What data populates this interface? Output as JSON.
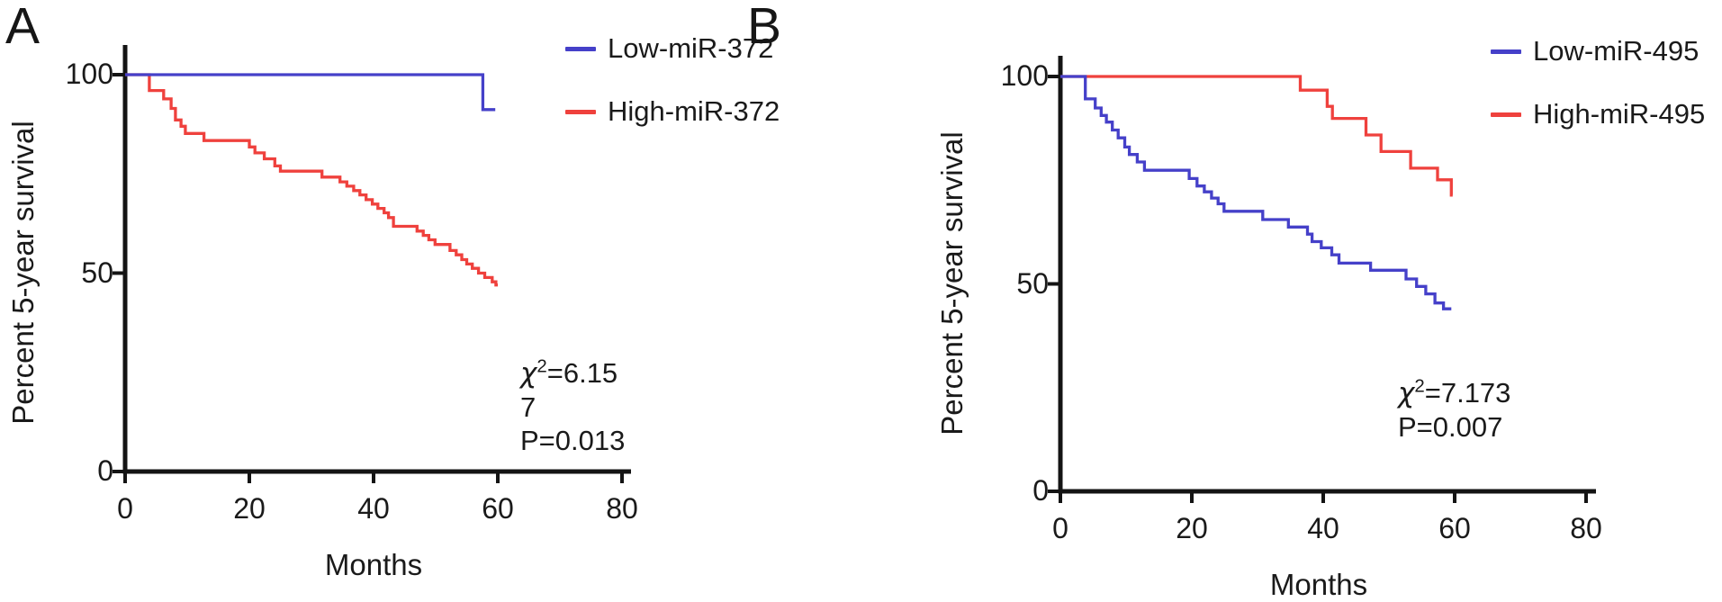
{
  "panels": [
    {
      "label": "A",
      "ylabel": "Percent 5-year survival",
      "xlabel": "Months",
      "stats": {
        "chi_symbol": "χ",
        "chi_exponent": "2",
        "chi_value": "=6.15",
        "overflow": "7",
        "p_value": "P=0.013"
      },
      "legend": [
        {
          "name": "Low-miR-372",
          "color": "#4540c9"
        },
        {
          "name": "High-miR-372",
          "color": "#ef413d"
        }
      ]
    },
    {
      "label": "B",
      "ylabel": "Percent 5-year survival",
      "xlabel": "Months",
      "stats": {
        "chi_symbol": "χ",
        "chi_exponent": "2",
        "chi_value": "=7.173",
        "overflow": "",
        "p_value": "P=0.007"
      },
      "legend": [
        {
          "name": "Low-miR-495",
          "color": "#4540c9"
        },
        {
          "name": "High-miR-495",
          "color": "#ef413d"
        }
      ]
    }
  ],
  "chart_data": [
    {
      "type": "line",
      "subtype": "kaplan-meier-step",
      "panel": "A",
      "title": "",
      "xlabel": "Months",
      "ylabel": "Percent 5-year survival",
      "xlim": [
        0,
        80
      ],
      "ylim": [
        0,
        100
      ],
      "xticks": [
        0,
        20,
        40,
        60,
        80
      ],
      "yticks": [
        0,
        50,
        100
      ],
      "grid": false,
      "legend_position": "top-right",
      "chi_squared": 6.157,
      "p_value": 0.013,
      "series": [
        {
          "name": "Low-miR-372",
          "color": "#4540c9",
          "start": [
            0,
            100
          ],
          "drops": [
            [
              57.6,
              91.2
            ]
          ],
          "end_month": 59.6
        },
        {
          "name": "High-miR-372",
          "color": "#ef413d",
          "start": [
            0,
            100
          ],
          "drops": [
            [
              3.9,
              96
            ],
            [
              6.2,
              93.9
            ],
            [
              7.4,
              91.5
            ],
            [
              8.1,
              88.6
            ],
            [
              9,
              87
            ],
            [
              9.7,
              85.2
            ],
            [
              12.7,
              83.4
            ],
            [
              20,
              81.8
            ],
            [
              20.9,
              80.3
            ],
            [
              22.4,
              78.8
            ],
            [
              24.1,
              77
            ],
            [
              25,
              75.7
            ],
            [
              31.7,
              74.2
            ],
            [
              34.6,
              73
            ],
            [
              35.7,
              71.9
            ],
            [
              36.8,
              70.8
            ],
            [
              37.8,
              69.7
            ],
            [
              38.8,
              68.5
            ],
            [
              39.8,
              67.4
            ],
            [
              40.7,
              66.3
            ],
            [
              41.7,
              65.2
            ],
            [
              42.4,
              64
            ],
            [
              43.2,
              61.8
            ],
            [
              47,
              60.6
            ],
            [
              48,
              59.5
            ],
            [
              48.9,
              58.4
            ],
            [
              49.9,
              57.2
            ],
            [
              52.3,
              55.7
            ],
            [
              53.3,
              54.6
            ],
            [
              54.2,
              53.4
            ],
            [
              55,
              52.3
            ],
            [
              55.9,
              51.2
            ],
            [
              56.9,
              50
            ],
            [
              57.9,
              48.9
            ],
            [
              59.1,
              47.8
            ],
            [
              59.7,
              47
            ]
          ],
          "end_month": 60
        }
      ]
    },
    {
      "type": "line",
      "subtype": "kaplan-meier-step",
      "panel": "B",
      "title": "",
      "xlabel": "Months",
      "ylabel": "Percent 5-year survival",
      "xlim": [
        0,
        80
      ],
      "ylim": [
        0,
        100
      ],
      "xticks": [
        0,
        20,
        40,
        60,
        80
      ],
      "yticks": [
        0,
        50,
        100
      ],
      "grid": false,
      "legend_position": "top-right",
      "chi_squared": 7.173,
      "p_value": 0.007,
      "series": [
        {
          "name": "Low-miR-495",
          "color": "#4540c9",
          "start": [
            0,
            100
          ],
          "drops": [
            [
              3.8,
              94.6
            ],
            [
              5.3,
              92.4
            ],
            [
              6.2,
              90.6
            ],
            [
              7,
              89
            ],
            [
              7.9,
              87.1
            ],
            [
              8.8,
              85.2
            ],
            [
              9.8,
              83
            ],
            [
              10.5,
              81.2
            ],
            [
              11.7,
              79.4
            ],
            [
              12.8,
              77.4
            ],
            [
              19.6,
              75.4
            ],
            [
              20.8,
              73.6
            ],
            [
              21.9,
              72.2
            ],
            [
              23,
              70.7
            ],
            [
              24,
              69.3
            ],
            [
              24.9,
              67.5
            ],
            [
              30.8,
              65.5
            ],
            [
              34.7,
              63.7
            ],
            [
              37.6,
              62
            ],
            [
              38.3,
              60.2
            ],
            [
              39.7,
              58.7
            ],
            [
              41.3,
              57
            ],
            [
              42.4,
              55
            ],
            [
              47.2,
              53.3
            ],
            [
              52.6,
              51.2
            ],
            [
              54.2,
              49.4
            ],
            [
              55.6,
              47.6
            ],
            [
              57,
              45.4
            ],
            [
              58.3,
              44
            ]
          ],
          "end_month": 59.5
        },
        {
          "name": "High-miR-495",
          "color": "#ef413d",
          "start": [
            0,
            100
          ],
          "drops": [
            [
              36.5,
              96.7
            ],
            [
              40.6,
              92.8
            ],
            [
              41.4,
              89.9
            ],
            [
              46.5,
              85.9
            ],
            [
              48.8,
              81.9
            ],
            [
              53.3,
              77.9
            ],
            [
              57.4,
              75.1
            ],
            [
              59.5,
              71.4
            ]
          ],
          "end_month": 59.7
        }
      ]
    }
  ]
}
